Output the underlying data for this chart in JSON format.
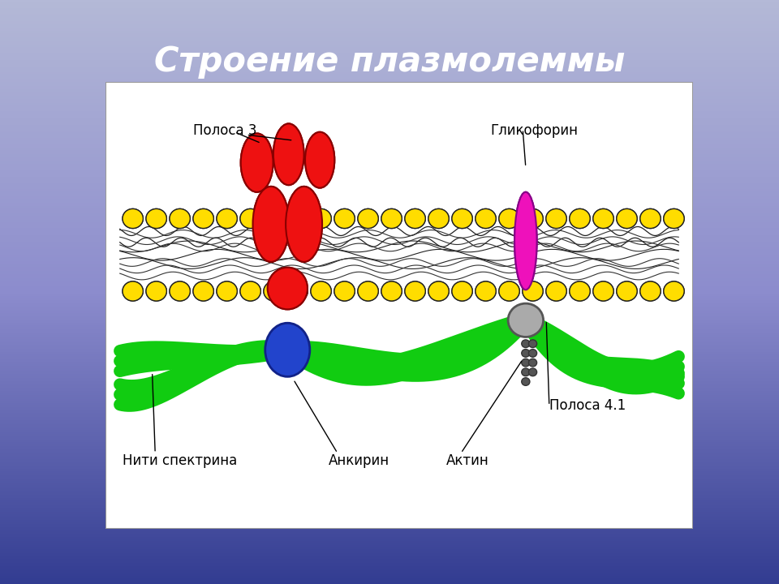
{
  "title": "Строение плазмолеммы",
  "title_fontsize": 30,
  "title_color": "white",
  "labels": {
    "polosa3": "Полоса 3",
    "glikoforin": "Гликофорин",
    "niti": "Нити спектрина",
    "ankirin": "Анкирин",
    "aktin": "Актин",
    "polosa41": "Полоса 4.1"
  },
  "label_fontsize": 12,
  "red_color": "#ee1111",
  "pink_color": "#ee11bb",
  "blue_color": "#2244cc",
  "green_color": "#11cc11",
  "gray_color": "#aaaaaa",
  "yellow_color": "#ffdd00",
  "bg_top": "#b0b8e8",
  "bg_mid": "#8090d0",
  "bg_bot": "#3050b0"
}
